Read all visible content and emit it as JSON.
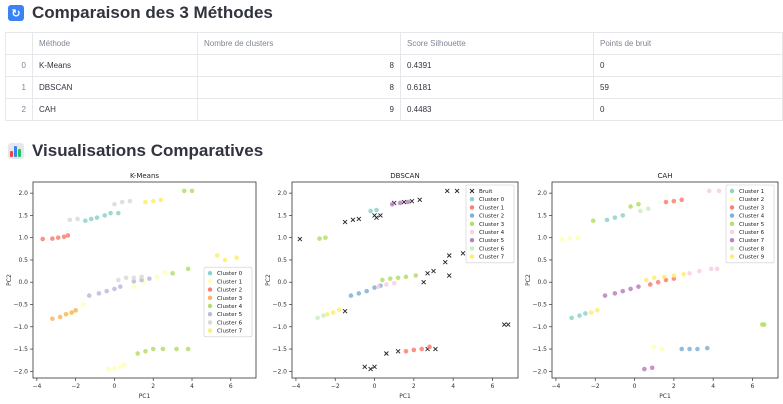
{
  "section1": {
    "title": "Comparaison des 3 Méthodes",
    "icon": "refresh-icon"
  },
  "table": {
    "headers": [
      "",
      "Méthode",
      "Nombre de clusters",
      "Score Silhouette",
      "Points de bruit"
    ],
    "rows": [
      {
        "index": "0",
        "method": "K-Means",
        "clusters": "8",
        "silhouette": "0.4391",
        "noise": "0"
      },
      {
        "index": "1",
        "method": "DBSCAN",
        "clusters": "8",
        "silhouette": "0.6181",
        "noise": "59"
      },
      {
        "index": "2",
        "method": "CAH",
        "clusters": "9",
        "silhouette": "0.4483",
        "noise": "0"
      }
    ]
  },
  "section2": {
    "title": "Visualisations Comparatives",
    "icon": "bar-chart-icon"
  },
  "chart_data": [
    {
      "type": "scatter",
      "title": "K-Means",
      "xlabel": "PC1",
      "ylabel": "PC2",
      "xlim": [
        -4.2,
        7.3
      ],
      "ylim": [
        -2.15,
        2.25
      ],
      "xticks": [
        -4,
        -2,
        0,
        2,
        4,
        6
      ],
      "yticks": [
        -2.0,
        -1.5,
        -1.0,
        -0.5,
        0.0,
        0.5,
        1.0,
        1.5,
        2.0
      ],
      "legend_position": "center-right",
      "series": [
        {
          "name": "Cluster 0",
          "color": "#8dd3c7",
          "points": [
            [
              -1.5,
              1.38
            ],
            [
              -1.2,
              1.42
            ],
            [
              -0.9,
              1.45
            ],
            [
              -0.5,
              1.5
            ],
            [
              -0.2,
              1.55
            ],
            [
              0.2,
              1.55
            ]
          ]
        },
        {
          "name": "Cluster 1",
          "color": "#ffffb3",
          "points": [
            [
              -0.3,
              -1.95
            ],
            [
              0,
              -1.93
            ],
            [
              0.3,
              -1.9
            ],
            [
              0.5,
              -1.85
            ],
            [
              -2.3,
              -0.7
            ],
            [
              -2,
              -0.65
            ],
            [
              -1.6,
              -0.5
            ],
            [
              1,
              -0.1
            ],
            [
              1.5,
              0
            ],
            [
              2.2,
              0.12
            ],
            [
              2.6,
              0.22
            ]
          ]
        },
        {
          "name": "Cluster 2",
          "color": "#fb8072",
          "points": [
            [
              -3.7,
              0.97
            ],
            [
              -3.2,
              0.98
            ],
            [
              -2.9,
              1.0
            ],
            [
              -2.6,
              1.02
            ],
            [
              -2.4,
              1.05
            ]
          ]
        },
        {
          "name": "Cluster 3",
          "color": "#fdb462",
          "points": [
            [
              -3.2,
              -0.82
            ],
            [
              -2.8,
              -0.78
            ],
            [
              -2.5,
              -0.72
            ],
            [
              -2.2,
              -0.68
            ],
            [
              -2.0,
              -0.63
            ]
          ]
        },
        {
          "name": "Cluster 4",
          "color": "#b3de69",
          "points": [
            [
              1.2,
              -1.6
            ],
            [
              1.6,
              -1.55
            ],
            [
              2.0,
              -1.5
            ],
            [
              2.5,
              -1.5
            ],
            [
              3.2,
              -1.5
            ],
            [
              3.8,
              -1.5
            ],
            [
              3.6,
              2.05
            ],
            [
              4.0,
              2.05
            ],
            [
              3.0,
              0.2
            ],
            [
              3.8,
              0.3
            ],
            [
              6.4,
              -0.95
            ]
          ]
        },
        {
          "name": "Cluster 5",
          "color": "#bebada",
          "points": [
            [
              -1.3,
              -0.3
            ],
            [
              -0.8,
              -0.25
            ],
            [
              -0.4,
              -0.2
            ],
            [
              0,
              -0.15
            ],
            [
              0.3,
              -0.1
            ],
            [
              1.0,
              0.02
            ],
            [
              1.4,
              0.05
            ],
            [
              1.8,
              0.08
            ]
          ]
        },
        {
          "name": "Cluster 6",
          "color": "#d9d9d9",
          "points": [
            [
              0.2,
              0.05
            ],
            [
              0.6,
              0.1
            ],
            [
              1.0,
              0.1
            ],
            [
              1.4,
              0.12
            ],
            [
              0.0,
              1.75
            ],
            [
              0.4,
              1.8
            ],
            [
              0.8,
              1.82
            ],
            [
              -2.3,
              1.4
            ],
            [
              -1.9,
              1.42
            ]
          ]
        },
        {
          "name": "Cluster 7",
          "color": "#ffed6f",
          "points": [
            [
              1.6,
              1.8
            ],
            [
              2.0,
              1.82
            ],
            [
              2.4,
              1.85
            ],
            [
              5.3,
              0.6
            ],
            [
              5.7,
              0.5
            ],
            [
              6.3,
              0.55
            ]
          ]
        }
      ]
    },
    {
      "type": "scatter",
      "title": "DBSCAN",
      "xlabel": "PC1",
      "ylabel": "PC2",
      "xlim": [
        -4.2,
        7.3
      ],
      "ylim": [
        -2.15,
        2.25
      ],
      "xticks": [
        -4,
        -2,
        0,
        2,
        4,
        6
      ],
      "yticks": [
        -2.0,
        -1.5,
        -1.0,
        -0.5,
        0.0,
        0.5,
        1.0,
        1.5,
        2.0
      ],
      "legend_position": "top-right",
      "series": [
        {
          "name": "Bruit",
          "color": "#222222",
          "marker": "x",
          "points": [
            [
              -3.8,
              0.97
            ],
            [
              -1.5,
              1.35
            ],
            [
              -1.1,
              1.4
            ],
            [
              -0.8,
              1.42
            ],
            [
              0,
              1.5
            ],
            [
              0.1,
              1.45
            ],
            [
              0.3,
              1.5
            ],
            [
              1.0,
              1.78
            ],
            [
              1.5,
              1.8
            ],
            [
              1.9,
              1.82
            ],
            [
              2.3,
              1.85
            ],
            [
              3.7,
              2.05
            ],
            [
              4.2,
              2.05
            ],
            [
              3.6,
              0.45
            ],
            [
              3.8,
              0.6
            ],
            [
              4.5,
              0.65
            ],
            [
              2.7,
              0.2
            ],
            [
              3.0,
              0.25
            ],
            [
              3.8,
              0.15
            ],
            [
              -0.5,
              -1.9
            ],
            [
              0,
              -1.9
            ],
            [
              0.6,
              -1.6
            ],
            [
              1.2,
              -1.55
            ],
            [
              2.7,
              -1.5
            ],
            [
              3.1,
              -1.5
            ],
            [
              6.6,
              -0.95
            ],
            [
              6.8,
              -0.95
            ],
            [
              -1.5,
              -0.65
            ],
            [
              2.5,
              0.0
            ],
            [
              -0.2,
              -1.95
            ]
          ]
        },
        {
          "name": "Cluster 0",
          "color": "#8dd3c7",
          "points": [
            [
              -0.2,
              1.6
            ],
            [
              0.1,
              1.62
            ]
          ]
        },
        {
          "name": "Cluster 1",
          "color": "#fb8072",
          "points": [
            [
              1.6,
              -1.55
            ],
            [
              2.0,
              -1.52
            ],
            [
              2.4,
              -1.5
            ],
            [
              2.8,
              -1.45
            ]
          ]
        },
        {
          "name": "Cluster 2",
          "color": "#80b1d3",
          "points": [
            [
              -1.2,
              -0.3
            ],
            [
              -0.8,
              -0.25
            ],
            [
              -0.4,
              -0.2
            ],
            [
              0,
              -0.12
            ],
            [
              0.3,
              -0.08
            ]
          ]
        },
        {
          "name": "Cluster 3",
          "color": "#b3de69",
          "points": [
            [
              -2.8,
              0.98
            ],
            [
              -2.5,
              1.0
            ],
            [
              0.4,
              0.05
            ],
            [
              0.8,
              0.08
            ],
            [
              1.2,
              0.1
            ],
            [
              1.6,
              0.12
            ],
            [
              2.1,
              0.15
            ]
          ]
        },
        {
          "name": "Cluster 4",
          "color": "#fccde5",
          "points": [
            [
              0.2,
              -0.1
            ],
            [
              0.6,
              -0.05
            ],
            [
              1.0,
              -0.02
            ]
          ]
        },
        {
          "name": "Cluster 5",
          "color": "#bc80bd",
          "points": [
            [
              0.9,
              1.75
            ],
            [
              1.3,
              1.78
            ],
            [
              1.7,
              1.8
            ]
          ]
        },
        {
          "name": "Cluster 6",
          "color": "#ccebc5",
          "points": [
            [
              -2.9,
              -0.8
            ],
            [
              -2.6,
              -0.75
            ]
          ]
        },
        {
          "name": "Cluster 7",
          "color": "#ffed6f",
          "points": [
            [
              -2.4,
              -0.72
            ],
            [
              -2.1,
              -0.68
            ],
            [
              -1.8,
              -0.62
            ]
          ]
        }
      ]
    },
    {
      "type": "scatter",
      "title": "CAH",
      "xlabel": "PC1",
      "ylabel": "PC2",
      "xlim": [
        -4.2,
        7.3
      ],
      "ylim": [
        -2.15,
        2.25
      ],
      "xticks": [
        -4,
        -2,
        0,
        2,
        4,
        6
      ],
      "yticks": [
        -2.0,
        -1.5,
        -1.0,
        -0.5,
        0.0,
        0.5,
        1.0,
        1.5,
        2.0
      ],
      "legend_position": "top-right",
      "series": [
        {
          "name": "Cluster 1",
          "color": "#8dd3c7",
          "points": [
            [
              -3.2,
              -0.8
            ],
            [
              -2.8,
              -0.75
            ],
            [
              -2.5,
              -0.7
            ],
            [
              -1.4,
              1.4
            ],
            [
              -1.0,
              1.45
            ],
            [
              -0.6,
              1.5
            ]
          ]
        },
        {
          "name": "Cluster 2",
          "color": "#ffffb3",
          "points": [
            [
              -3.7,
              0.97
            ],
            [
              -3.3,
              0.98
            ],
            [
              -2.9,
              1.0
            ],
            [
              1.0,
              -1.45
            ],
            [
              1.4,
              -1.5
            ]
          ]
        },
        {
          "name": "Cluster 3",
          "color": "#fb8072",
          "points": [
            [
              0.8,
              -0.05
            ],
            [
              1.2,
              0.0
            ],
            [
              1.6,
              0.05
            ],
            [
              2.0,
              0.08
            ],
            [
              1.6,
              1.8
            ],
            [
              2.0,
              1.82
            ],
            [
              2.4,
              1.85
            ]
          ]
        },
        {
          "name": "Cluster 4",
          "color": "#80b1d3",
          "points": [
            [
              2.4,
              -1.5
            ],
            [
              2.8,
              -1.5
            ],
            [
              3.2,
              -1.5
            ],
            [
              3.7,
              -1.48
            ]
          ]
        },
        {
          "name": "Cluster 5",
          "color": "#b3de69",
          "points": [
            [
              -0.2,
              1.7
            ],
            [
              0.2,
              1.75
            ],
            [
              -2.1,
              1.38
            ],
            [
              6.5,
              -0.95
            ],
            [
              6.6,
              -0.95
            ]
          ]
        },
        {
          "name": "Cluster 6",
          "color": "#fccde5",
          "points": [
            [
              2.8,
              0.2
            ],
            [
              3.3,
              0.25
            ],
            [
              3.9,
              0.3
            ],
            [
              4.2,
              0.3
            ],
            [
              3.8,
              2.05
            ],
            [
              4.3,
              2.05
            ],
            [
              5.0,
              0.6
            ],
            [
              5.6,
              0.6
            ]
          ]
        },
        {
          "name": "Cluster 7",
          "color": "#bc80bd",
          "points": [
            [
              -1.5,
              -0.3
            ],
            [
              -1.0,
              -0.25
            ],
            [
              -0.6,
              -0.2
            ],
            [
              -0.2,
              -0.15
            ],
            [
              0.2,
              -0.1
            ],
            [
              0.5,
              -1.95
            ],
            [
              0.9,
              -1.92
            ]
          ]
        },
        {
          "name": "Cluster 8",
          "color": "#ccebc5",
          "points": [
            [
              0.3,
              1.6
            ],
            [
              0.7,
              1.65
            ]
          ]
        },
        {
          "name": "Cluster 9",
          "color": "#ffed6f",
          "points": [
            [
              0.6,
              0.05
            ],
            [
              1.0,
              0.1
            ],
            [
              1.5,
              0.12
            ],
            [
              2.0,
              0.15
            ],
            [
              2.5,
              0.18
            ],
            [
              -2.2,
              -0.68
            ],
            [
              -1.9,
              -0.63
            ]
          ]
        }
      ]
    }
  ]
}
